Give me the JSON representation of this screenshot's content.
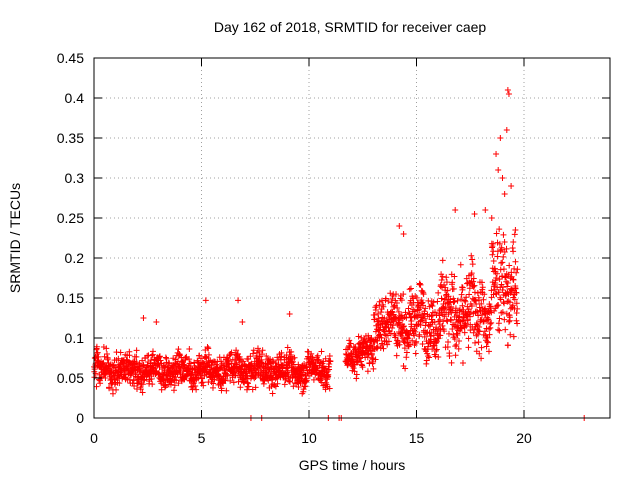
{
  "chart_data": {
    "type": "scatter",
    "title": "Day 162 of 2018, SRMTID for receiver caep",
    "xlabel": "GPS time / hours",
    "ylabel": "SRMTID / TECUs",
    "xlim": [
      0,
      24
    ],
    "ylim": [
      0,
      0.45
    ],
    "x_ticks": [
      0,
      5,
      10,
      15,
      20
    ],
    "x_tick_labels": [
      "0",
      "5",
      "10",
      "15",
      "20"
    ],
    "y_ticks": [
      0,
      0.05,
      0.1,
      0.15,
      0.2,
      0.25,
      0.3,
      0.35,
      0.4,
      0.45
    ],
    "y_tick_labels": [
      "0",
      "0.05",
      "0.1",
      "0.15",
      "0.2",
      "0.25",
      "0.3",
      "0.35",
      "0.4",
      "0.45"
    ],
    "grid": true,
    "marker": "+",
    "color": "#ff0000",
    "series": [
      {
        "name": "SRMTID",
        "envelope": [
          {
            "x_start": 0.0,
            "x_end": 11.0,
            "y_mean": 0.06,
            "y_spread": 0.025
          },
          {
            "x_start": 11.7,
            "x_end": 13.0,
            "y_mean": 0.08,
            "y_spread": 0.025
          },
          {
            "x_start": 13.0,
            "x_end": 16.0,
            "y_mean": 0.12,
            "y_spread": 0.045
          },
          {
            "x_start": 16.0,
            "x_end": 18.5,
            "y_mean": 0.13,
            "y_spread": 0.06
          },
          {
            "x_start": 18.5,
            "x_end": 19.7,
            "y_mean": 0.17,
            "y_spread": 0.08
          }
        ],
        "notable_points": [
          {
            "x": 2.3,
            "y": 0.125
          },
          {
            "x": 2.9,
            "y": 0.12
          },
          {
            "x": 5.2,
            "y": 0.147
          },
          {
            "x": 6.7,
            "y": 0.147
          },
          {
            "x": 6.9,
            "y": 0.12
          },
          {
            "x": 9.1,
            "y": 0.13
          },
          {
            "x": 7.3,
            "y": 0.0
          },
          {
            "x": 7.8,
            "y": 0.0
          },
          {
            "x": 10.9,
            "y": 0.0
          },
          {
            "x": 11.4,
            "y": 0.0
          },
          {
            "x": 11.5,
            "y": 0.0
          },
          {
            "x": 14.2,
            "y": 0.24
          },
          {
            "x": 14.4,
            "y": 0.23
          },
          {
            "x": 16.8,
            "y": 0.26
          },
          {
            "x": 17.7,
            "y": 0.255
          },
          {
            "x": 18.2,
            "y": 0.26
          },
          {
            "x": 18.5,
            "y": 0.25
          },
          {
            "x": 18.7,
            "y": 0.33
          },
          {
            "x": 18.8,
            "y": 0.31
          },
          {
            "x": 18.9,
            "y": 0.35
          },
          {
            "x": 19.0,
            "y": 0.3
          },
          {
            "x": 19.1,
            "y": 0.28
          },
          {
            "x": 19.2,
            "y": 0.36
          },
          {
            "x": 19.25,
            "y": 0.41
          },
          {
            "x": 19.3,
            "y": 0.405
          },
          {
            "x": 19.4,
            "y": 0.29
          },
          {
            "x": 19.5,
            "y": 0.22
          },
          {
            "x": 19.6,
            "y": 0.235
          },
          {
            "x": 22.8,
            "y": 0.0
          }
        ]
      }
    ]
  }
}
